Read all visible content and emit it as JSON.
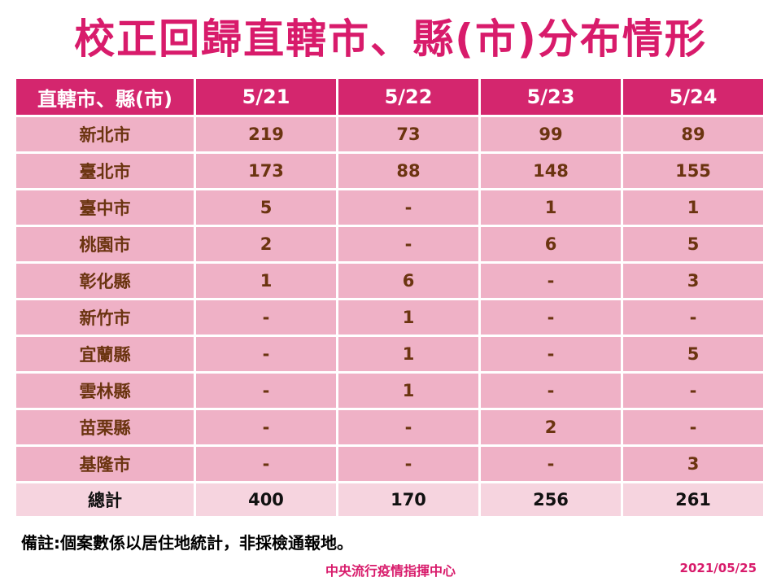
{
  "title": "校正回歸直轄市、縣(市)分布情形",
  "table": {
    "headers": [
      "直轄市、縣(市)",
      "5/21",
      "5/22",
      "5/23",
      "5/24"
    ],
    "rows": [
      {
        "region": "新北市",
        "values": [
          "219",
          "73",
          "99",
          "89"
        ]
      },
      {
        "region": "臺北市",
        "values": [
          "173",
          "88",
          "148",
          "155"
        ]
      },
      {
        "region": "臺中市",
        "values": [
          "5",
          "-",
          "1",
          "1"
        ]
      },
      {
        "region": "桃園市",
        "values": [
          "2",
          "-",
          "6",
          "5"
        ]
      },
      {
        "region": "彰化縣",
        "values": [
          "1",
          "6",
          "-",
          "3"
        ]
      },
      {
        "region": "新竹市",
        "values": [
          "-",
          "1",
          "-",
          "-"
        ]
      },
      {
        "region": "宜蘭縣",
        "values": [
          "-",
          "1",
          "-",
          "5"
        ]
      },
      {
        "region": "雲林縣",
        "values": [
          "-",
          "1",
          "-",
          "-"
        ]
      },
      {
        "region": "苗栗縣",
        "values": [
          "-",
          "-",
          "2",
          "-"
        ]
      },
      {
        "region": "基隆市",
        "values": [
          "-",
          "-",
          "-",
          "3"
        ]
      }
    ],
    "total": {
      "label": "總計",
      "values": [
        "400",
        "170",
        "256",
        "261"
      ]
    }
  },
  "note": "備註:個案數係以居住地統計，非採檢通報地。",
  "footer": {
    "organization": "中央流行疫情指揮中心",
    "date": "2021/05/25"
  },
  "colors": {
    "accent": "#d81b6b",
    "header_bg": "#d4266e",
    "body_bg": "#efb1c6",
    "total_bg": "#f6d4df",
    "body_text": "#6b3410"
  }
}
